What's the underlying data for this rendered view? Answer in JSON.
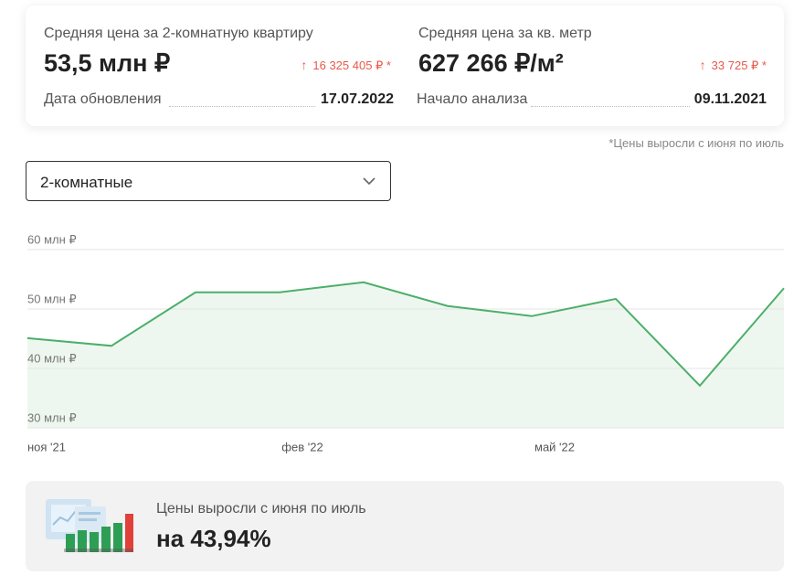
{
  "summary": {
    "left": {
      "label": "Средняя цена за 2-комнатную квартиру",
      "price": "53,5 млн ₽",
      "change": "16 325 405 ₽ *",
      "date_label": "Дата обновления",
      "date": "17.07.2022"
    },
    "right": {
      "label": "Средняя цена за кв. метр",
      "price": "627 266 ₽/м²",
      "change": "33 725 ₽ *",
      "date_label": "Начало анализа",
      "date": "09.11.2021"
    }
  },
  "note": "*Цены выросли с июня по июль",
  "dropdown": "2-комнатные",
  "chart_data": {
    "type": "line",
    "categories": [
      "ноя '21",
      null,
      null,
      "фев '22",
      null,
      null,
      "май '22",
      null,
      null,
      null
    ],
    "series": [
      {
        "color": "#4caf6a",
        "values": [
          45.1,
          43.8,
          52.8,
          52.8,
          54.5,
          50.5,
          48.8,
          51.7,
          37.1,
          53.5
        ]
      }
    ],
    "ylim": [
      30,
      60
    ],
    "yticks": [
      {
        "value": 30,
        "label": "30 млн ₽"
      },
      {
        "value": 40,
        "label": "40 млн ₽"
      },
      {
        "value": 50,
        "label": "50 млн ₽"
      },
      {
        "value": 60,
        "label": "60 млн ₽"
      }
    ],
    "grid": true,
    "area_color": "#eef7ef"
  },
  "footer": {
    "text": "Цены выросли с июня по июль",
    "value": "на 43,94%"
  }
}
